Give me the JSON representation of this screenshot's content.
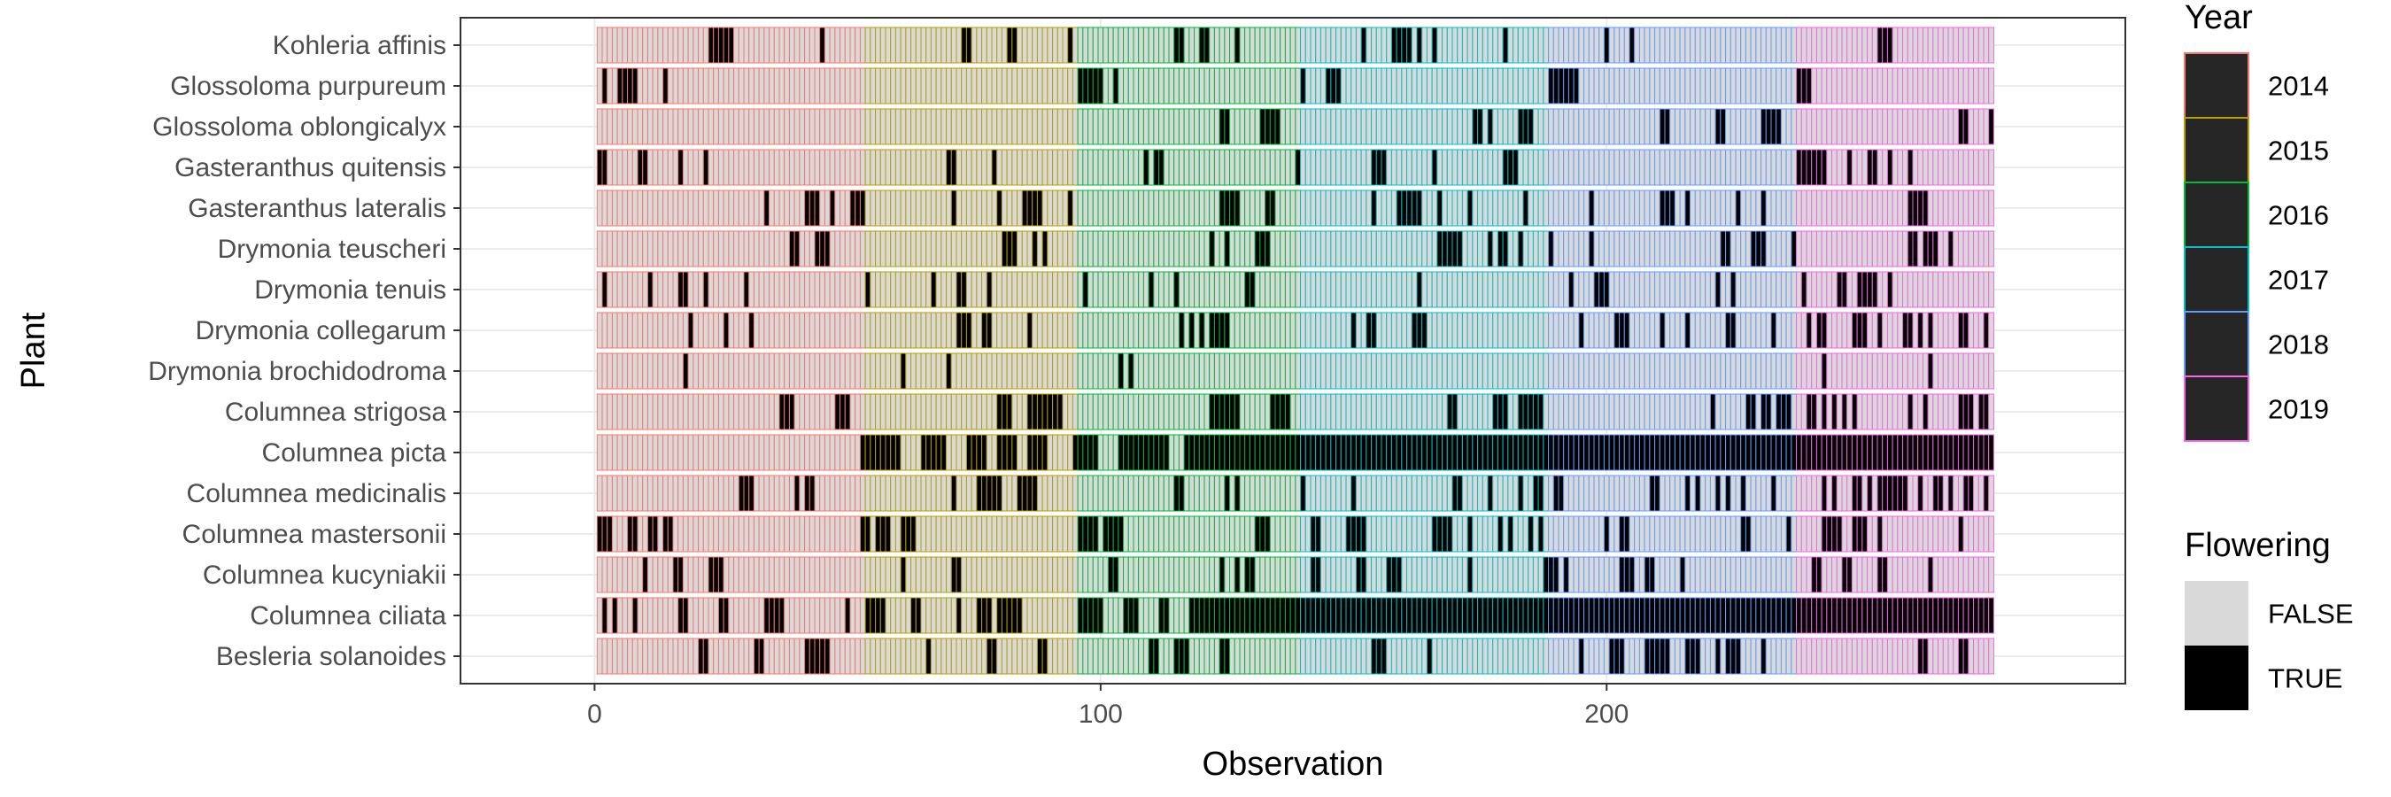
{
  "chart_data": {
    "type": "heatmap",
    "xlabel": "Observation",
    "ylabel": "Plant",
    "xlim": [
      0,
      276
    ],
    "x_tick_labels": [
      "0",
      "100",
      "200"
    ],
    "x_ticks": [
      0,
      100,
      200
    ],
    "n_observations": 276,
    "plants": [
      "Kohleria affinis",
      "Glossoloma purpureum",
      "Glossoloma oblongicalyx",
      "Gasteranthus quitensis",
      "Gasteranthus lateralis",
      "Drymonia teuscheri",
      "Drymonia tenuis",
      "Drymonia collegarum",
      "Drymonia brochidodroma",
      "Columnea strigosa",
      "Columnea picta",
      "Columnea medicinalis",
      "Columnea mastersonii",
      "Columnea kucyniakii",
      "Columnea ciliata",
      "Besleria solanoides"
    ],
    "years": [
      {
        "label": "2014",
        "start": 1,
        "end": 53,
        "color": "#F8766D"
      },
      {
        "label": "2015",
        "start": 54,
        "end": 95,
        "color": "#B79F00"
      },
      {
        "label": "2016",
        "start": 96,
        "end": 139,
        "color": "#00BA38"
      },
      {
        "label": "2017",
        "start": 140,
        "end": 188,
        "color": "#00BFC4"
      },
      {
        "label": "2018",
        "start": 189,
        "end": 237,
        "color": "#619CFF"
      },
      {
        "label": "2019",
        "start": 238,
        "end": 276,
        "color": "#F564E3"
      }
    ],
    "legend_year_title": "Year",
    "legend_flowering_title": "Flowering",
    "flowering_levels": [
      {
        "label": "FALSE",
        "color": "#D9D9D9"
      },
      {
        "label": "TRUE",
        "color": "#000000"
      }
    ],
    "flowering_true": {
      "Kohleria affinis": [
        23,
        24,
        25,
        26,
        27,
        45,
        73,
        74,
        82,
        83,
        94,
        115,
        116,
        120,
        121,
        127,
        152,
        158,
        159,
        160,
        161,
        163,
        166,
        180,
        200,
        205,
        254,
        255,
        256
      ],
      "Glossoloma purpureum": [
        2,
        5,
        6,
        7,
        8,
        14,
        96,
        97,
        98,
        99,
        100,
        103,
        140,
        145,
        146,
        147,
        189,
        190,
        191,
        192,
        193,
        194,
        238,
        239,
        240
      ],
      "Glossoloma oblongicalyx": [
        124,
        125,
        132,
        133,
        134,
        135,
        174,
        175,
        177,
        183,
        184,
        185,
        211,
        212,
        222,
        223,
        231,
        232,
        233,
        234,
        270,
        271,
        276
      ],
      "Gasteranthus quitensis": [
        1,
        2,
        9,
        10,
        17,
        22,
        70,
        71,
        79,
        109,
        111,
        112,
        139,
        154,
        155,
        156,
        166,
        180,
        181,
        182,
        238,
        239,
        240,
        241,
        242,
        243,
        248,
        252,
        253,
        256,
        260
      ],
      "Gasteranthus lateralis": [
        34,
        42,
        43,
        44,
        47,
        51,
        52,
        53,
        71,
        80,
        85,
        86,
        87,
        88,
        94,
        124,
        125,
        126,
        127,
        133,
        134,
        154,
        159,
        160,
        161,
        162,
        163,
        167,
        173,
        184,
        197,
        211,
        212,
        213,
        216,
        226,
        231,
        260,
        261,
        262,
        263
      ],
      "Drymonia teuscheri": [
        39,
        40,
        44,
        45,
        46,
        81,
        82,
        83,
        87,
        89,
        122,
        125,
        131,
        132,
        133,
        167,
        168,
        169,
        170,
        171,
        177,
        179,
        180,
        183,
        189,
        197,
        223,
        224,
        229,
        230,
        231,
        237,
        260,
        261,
        263,
        264,
        265,
        268
      ],
      "Drymonia tenuis": [
        2,
        11,
        17,
        18,
        22,
        30,
        54,
        67,
        72,
        73,
        78,
        97,
        110,
        115,
        129,
        130,
        163,
        193,
        198,
        199,
        200,
        222,
        225,
        239,
        246,
        247,
        250,
        251,
        252,
        253,
        256
      ],
      "Drymonia collegarum": [
        19,
        26,
        31,
        72,
        73,
        74,
        77,
        78,
        86,
        116,
        118,
        120,
        122,
        123,
        124,
        125,
        150,
        153,
        154,
        162,
        163,
        164,
        195,
        202,
        203,
        204,
        211,
        216,
        224,
        225,
        233,
        240,
        242,
        243,
        249,
        250,
        251,
        254,
        259,
        260,
        262,
        264,
        270,
        271,
        275
      ],
      "Drymonia brochidodroma": [
        18,
        61,
        70,
        104,
        106,
        243,
        264
      ],
      "Columnea strigosa": [
        37,
        38,
        39,
        48,
        49,
        50,
        80,
        81,
        82,
        86,
        87,
        88,
        89,
        90,
        91,
        92,
        122,
        123,
        124,
        125,
        126,
        127,
        134,
        135,
        136,
        137,
        169,
        170,
        178,
        179,
        180,
        183,
        184,
        185,
        186,
        187,
        221,
        228,
        229,
        231,
        232,
        234,
        235,
        236,
        240,
        241,
        243,
        245,
        247,
        249,
        260,
        263,
        270,
        271,
        272,
        274,
        275
      ],
      "Columnea picta": [
        53,
        54,
        55,
        56,
        57,
        58,
        59,
        60,
        65,
        66,
        67,
        68,
        69,
        74,
        75,
        76,
        77,
        80,
        81,
        82,
        83,
        86,
        87,
        88,
        89,
        95,
        96,
        97,
        98,
        99,
        104,
        105,
        106,
        107,
        108,
        109,
        110,
        111,
        112,
        113,
        117,
        118,
        119,
        120,
        121,
        122,
        123,
        124,
        125,
        126,
        127,
        128,
        129,
        130,
        131,
        132,
        133,
        134,
        135,
        136,
        137,
        138,
        139,
        140,
        141,
        142,
        143,
        144,
        145,
        146,
        147,
        148,
        149,
        150,
        151,
        152,
        153,
        154,
        155,
        156,
        157,
        158,
        159,
        160,
        161,
        162,
        163,
        164,
        165,
        166,
        167,
        168,
        169,
        170,
        171,
        172,
        173,
        174,
        175,
        176,
        177,
        178,
        179,
        180,
        181,
        182,
        183,
        184,
        185,
        186,
        187,
        188,
        189,
        190,
        191,
        192,
        193,
        194,
        195,
        196,
        197,
        198,
        199,
        200,
        201,
        202,
        203,
        204,
        205,
        206,
        207,
        208,
        209,
        210,
        211,
        212,
        213,
        214,
        215,
        216,
        217,
        218,
        219,
        220,
        221,
        222,
        223,
        224,
        225,
        226,
        227,
        228,
        229,
        230,
        231,
        232,
        233,
        234,
        235,
        236,
        237,
        238,
        239,
        240,
        241,
        242,
        243,
        244,
        245,
        246,
        247,
        248,
        249,
        250,
        251,
        252,
        253,
        254,
        255,
        256,
        257,
        258,
        259,
        260,
        261,
        262,
        263,
        264,
        265,
        266,
        267,
        268,
        269,
        270,
        271,
        272,
        273,
        274,
        275,
        276
      ],
      "Columnea medicinalis": [
        29,
        30,
        31,
        40,
        42,
        43,
        71,
        76,
        77,
        78,
        79,
        80,
        84,
        85,
        86,
        87,
        115,
        116,
        125,
        127,
        140,
        150,
        170,
        171,
        177,
        183,
        186,
        187,
        190,
        191,
        209,
        210,
        216,
        218,
        222,
        224,
        227,
        233,
        243,
        245,
        249,
        250,
        252,
        254,
        255,
        256,
        257,
        258,
        259,
        262,
        265,
        266,
        268,
        271,
        272,
        275
      ],
      "Columnea mastersonii": [
        1,
        2,
        3,
        7,
        8,
        11,
        12,
        14,
        15,
        53,
        54,
        56,
        57,
        58,
        61,
        62,
        63,
        96,
        97,
        98,
        99,
        101,
        102,
        103,
        104,
        131,
        132,
        133,
        142,
        143,
        149,
        150,
        151,
        152,
        166,
        167,
        168,
        169,
        173,
        179,
        181,
        185,
        187,
        200,
        203,
        204,
        227,
        228,
        236,
        243,
        244,
        245,
        246,
        249,
        250,
        251,
        254,
        270
      ],
      "Columnea kucyniakii": [
        10,
        16,
        17,
        23,
        24,
        25,
        61,
        71,
        72,
        102,
        103,
        124,
        127,
        129,
        130,
        142,
        143,
        151,
        152,
        157,
        158,
        159,
        173,
        188,
        189,
        190,
        192,
        203,
        204,
        205,
        208,
        209,
        215,
        241,
        242,
        247,
        248,
        254,
        255,
        264
      ],
      "Columnea ciliata": [
        2,
        4,
        8,
        17,
        18,
        25,
        26,
        34,
        35,
        36,
        37,
        50,
        54,
        55,
        56,
        57,
        63,
        64,
        72,
        76,
        77,
        78,
        80,
        81,
        82,
        83,
        84,
        96,
        97,
        98,
        99,
        100,
        105,
        106,
        107,
        112,
        113,
        118,
        119,
        120,
        121,
        122,
        123,
        124,
        125,
        126,
        127,
        128,
        129,
        130,
        131,
        132,
        133,
        134,
        135,
        136,
        137,
        138,
        139,
        140,
        141,
        142,
        143,
        144,
        145,
        146,
        147,
        148,
        149,
        150,
        151,
        152,
        153,
        154,
        155,
        156,
        157,
        158,
        159,
        160,
        161,
        162,
        163,
        164,
        165,
        166,
        167,
        168,
        169,
        170,
        171,
        172,
        173,
        174,
        175,
        176,
        177,
        178,
        179,
        180,
        181,
        182,
        183,
        184,
        185,
        186,
        187,
        188,
        189,
        190,
        191,
        192,
        193,
        194,
        195,
        196,
        197,
        198,
        199,
        200,
        201,
        202,
        203,
        204,
        205,
        206,
        207,
        208,
        209,
        210,
        211,
        212,
        213,
        214,
        215,
        216,
        217,
        218,
        219,
        220,
        221,
        222,
        223,
        224,
        225,
        226,
        227,
        228,
        229,
        230,
        231,
        232,
        233,
        234,
        235,
        236,
        237,
        238,
        239,
        240,
        241,
        242,
        243,
        244,
        245,
        246,
        247,
        248,
        249,
        250,
        251,
        252,
        253,
        254,
        255,
        256,
        257,
        258,
        259,
        260,
        261,
        262,
        263,
        264,
        265,
        266,
        267,
        268,
        269,
        270,
        271,
        272,
        273,
        274,
        275,
        276
      ],
      "Besleria solanoides": [
        21,
        22,
        32,
        33,
        42,
        43,
        44,
        45,
        46,
        66,
        78,
        79,
        88,
        89,
        110,
        111,
        115,
        116,
        117,
        124,
        125,
        154,
        155,
        156,
        165,
        195,
        201,
        202,
        203,
        208,
        209,
        210,
        211,
        212,
        216,
        217,
        218,
        222,
        224,
        225,
        226,
        231,
        262,
        263,
        270,
        271
      ]
    }
  }
}
